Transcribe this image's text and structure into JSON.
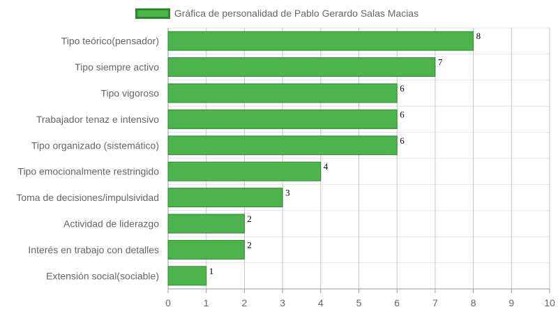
{
  "chart_data": {
    "type": "bar",
    "orientation": "horizontal",
    "categories": [
      "Tipo teórico(pensador)",
      "Tipo siempre activo",
      "Tipo vigoroso",
      "Trabajador tenaz e intensivo",
      "Tipo organizado (sistemático)",
      "Tipo emocionalmente restringido",
      "Toma de decisiones/impulsividad",
      "Actividad de liderazgo",
      "Interés en trabajo con detalles",
      "Extensión social(sociable)"
    ],
    "series": [
      {
        "name": "Gráfica de personalidad de Pablo Gerardo Salas Macias",
        "values": [
          8,
          7,
          6,
          6,
          6,
          4,
          3,
          2,
          2,
          1
        ]
      }
    ],
    "xlim": [
      0,
      10
    ],
    "x_ticks": [
      "0",
      "1",
      "2",
      "3",
      "4",
      "5",
      "6",
      "7",
      "8",
      "9",
      "10"
    ],
    "grid": true,
    "legend_position": "top",
    "data_labels": true
  },
  "colors": {
    "bar_fill": "#4db34d",
    "bar_border": "#2a8a2a",
    "grid": "#e6e6e6",
    "grid_strong": "#999999",
    "text": "#666666"
  }
}
